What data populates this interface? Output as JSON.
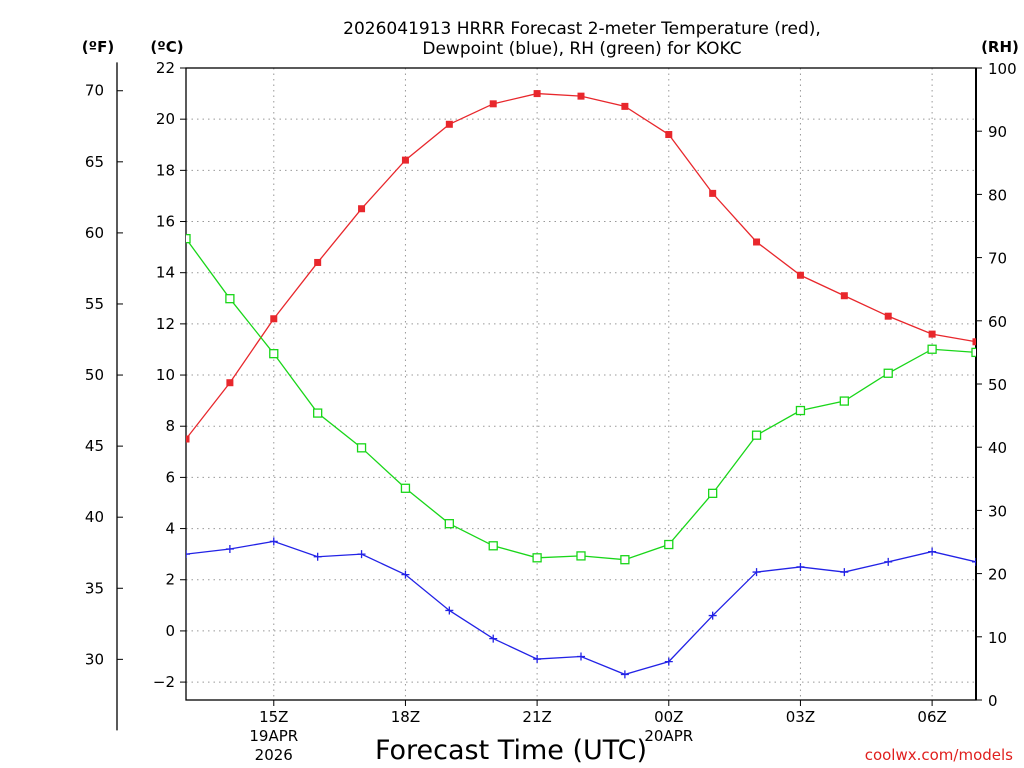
{
  "chart_data": {
    "type": "line",
    "title_line1": "2026041913 HRRR Forecast 2-meter Temperature (red),",
    "title_line2": "Dewpoint (blue), RH (green) for KOKC",
    "xlabel": "Forecast Time (UTC)",
    "credit": "coolwx.com/models",
    "left_outer_unit": "(ºF)",
    "left_inner_unit": "(ºC)",
    "right_unit": "(RH)",
    "x_hours": [
      13,
      14,
      15,
      16,
      17,
      18,
      19,
      20,
      21,
      22,
      23,
      24,
      25,
      26,
      27,
      28,
      29,
      30,
      31
    ],
    "x_range": [
      13,
      31
    ],
    "x_ticks": [
      {
        "hour": 15,
        "label": "15Z",
        "sub1": "19APR",
        "sub2": "2026"
      },
      {
        "hour": 18,
        "label": "18Z",
        "sub1": "",
        "sub2": ""
      },
      {
        "hour": 21,
        "label": "21Z",
        "sub1": "",
        "sub2": ""
      },
      {
        "hour": 24,
        "label": "00Z",
        "sub1": "20APR",
        "sub2": ""
      },
      {
        "hour": 27,
        "label": "03Z",
        "sub1": "",
        "sub2": ""
      },
      {
        "hour": 30,
        "label": "06Z",
        "sub1": "",
        "sub2": ""
      }
    ],
    "celsius_range": [
      -2.7,
      22
    ],
    "celsius_ticks": [
      "-2",
      "0",
      "2",
      "4",
      "6",
      "8",
      "10",
      "12",
      "14",
      "16",
      "18",
      "20",
      "22"
    ],
    "fahrenheit_ticks": [
      "30",
      "35",
      "40",
      "45",
      "50",
      "55",
      "60",
      "65",
      "70"
    ],
    "rh_range": [
      0,
      100
    ],
    "rh_ticks": [
      "0",
      "10",
      "20",
      "30",
      "40",
      "50",
      "60",
      "70",
      "80",
      "90",
      "100"
    ],
    "colors": {
      "temperature": "#e8272c",
      "dewpoint": "#2222e6",
      "rh": "#19d619"
    },
    "series": [
      {
        "name": "Temperature",
        "units": "C",
        "axis": "celsius",
        "values": [
          7.5,
          9.7,
          12.2,
          14.4,
          16.5,
          18.4,
          19.8,
          20.6,
          21.0,
          20.9,
          20.5,
          19.4,
          17.1,
          15.2,
          13.9,
          13.1,
          12.3,
          11.6,
          11.3
        ]
      },
      {
        "name": "Dewpoint",
        "units": "C",
        "axis": "celsius",
        "values": [
          3.0,
          3.2,
          3.5,
          2.9,
          3.0,
          2.2,
          0.8,
          -0.3,
          -1.1,
          -1.0,
          -1.7,
          -1.2,
          0.6,
          2.3,
          2.5,
          2.3,
          2.7,
          3.1,
          2.7
        ]
      },
      {
        "name": "RH",
        "units": "%",
        "axis": "rh",
        "values": [
          73.0,
          63.5,
          54.8,
          45.4,
          39.9,
          33.5,
          27.9,
          24.4,
          22.5,
          22.8,
          22.2,
          24.6,
          32.7,
          41.9,
          45.8,
          47.3,
          51.7,
          55.5,
          55.0
        ]
      }
    ]
  }
}
